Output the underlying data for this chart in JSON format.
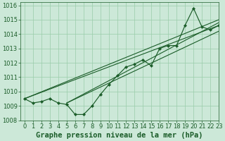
{
  "title": "Graphe pression niveau de la mer (hPa)",
  "bg_color": "#cce8d8",
  "grid_color": "#99ccaa",
  "line_color": "#1a5c28",
  "marker_color": "#1a5c28",
  "xlim": [
    -0.5,
    23
  ],
  "ylim": [
    1008,
    1016.2
  ],
  "yticks": [
    1008,
    1009,
    1010,
    1011,
    1012,
    1013,
    1014,
    1015,
    1016
  ],
  "xticks": [
    0,
    1,
    2,
    3,
    4,
    5,
    6,
    7,
    8,
    9,
    10,
    11,
    12,
    13,
    14,
    15,
    16,
    17,
    18,
    19,
    20,
    21,
    22,
    23
  ],
  "jagged": [
    1009.5,
    1009.2,
    1009.3,
    1009.5,
    1009.2,
    1009.1,
    1008.4,
    1008.4,
    1009.0,
    1009.8,
    1010.5,
    1011.1,
    1011.7,
    1011.9,
    1012.2,
    1011.8,
    1013.0,
    1013.2,
    1013.2,
    1014.6,
    1015.8,
    1014.5,
    1014.3,
    1014.6
  ],
  "straight_lines": [
    [
      [
        0,
        1009.5
      ],
      [
        23,
        1014.6
      ]
    ],
    [
      [
        0,
        1009.5
      ],
      [
        23,
        1015.0
      ]
    ],
    [
      [
        5,
        1009.2
      ],
      [
        23,
        1014.8
      ]
    ],
    [
      [
        5,
        1009.2
      ],
      [
        23,
        1014.2
      ]
    ]
  ],
  "title_fontsize": 7.5,
  "tick_fontsize": 6
}
